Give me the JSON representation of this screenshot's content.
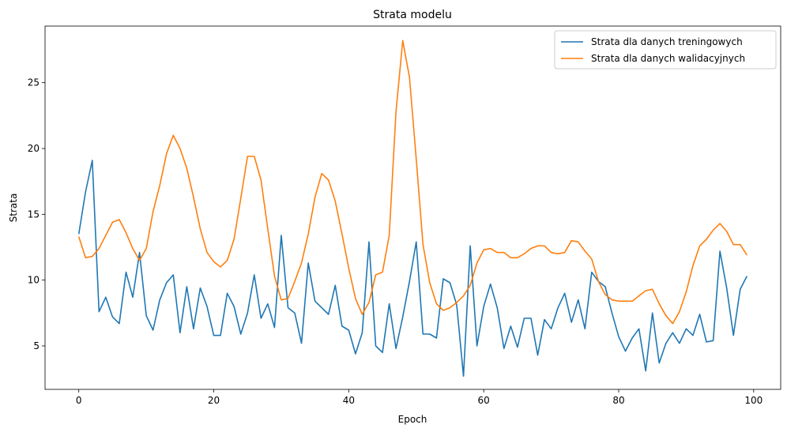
{
  "chart_data": {
    "type": "line",
    "title": "Strata modelu",
    "xlabel": "Epoch",
    "ylabel": "Strata",
    "xlim": [
      -5,
      104
    ],
    "ylim": [
      1.7,
      29.3
    ],
    "xticks": [
      0,
      20,
      40,
      60,
      80,
      100
    ],
    "yticks": [
      5,
      10,
      15,
      20,
      25
    ],
    "grid": false,
    "legend_position": "top-right",
    "series": [
      {
        "name": "Strata dla danych treningowych",
        "color": "#1f77b4",
        "x": [
          0,
          1,
          2,
          3,
          4,
          5,
          6,
          7,
          8,
          9,
          10,
          11,
          12,
          13,
          14,
          15,
          16,
          17,
          18,
          19,
          20,
          21,
          22,
          23,
          24,
          25,
          26,
          27,
          28,
          29,
          30,
          31,
          32,
          33,
          34,
          35,
          36,
          37,
          38,
          39,
          40,
          41,
          42,
          43,
          44,
          45,
          46,
          47,
          48,
          49,
          50,
          51,
          52,
          53,
          54,
          55,
          56,
          57,
          58,
          59,
          60,
          61,
          62,
          63,
          64,
          65,
          66,
          67,
          68,
          69,
          70,
          71,
          72,
          73,
          74,
          75,
          76,
          77,
          78,
          79,
          80,
          81,
          82,
          83,
          84,
          85,
          86,
          87,
          88,
          89,
          90,
          91,
          92,
          93,
          94,
          95,
          96,
          97,
          98,
          99
        ],
        "values": [
          13.5,
          16.7,
          19.1,
          7.6,
          8.7,
          7.2,
          6.7,
          10.6,
          8.7,
          12.1,
          7.3,
          6.2,
          8.5,
          9.8,
          10.4,
          6.0,
          9.5,
          6.3,
          9.4,
          8.0,
          5.8,
          5.8,
          9.0,
          8.0,
          5.9,
          7.5,
          10.4,
          7.1,
          8.2,
          6.4,
          13.4,
          7.9,
          7.5,
          5.2,
          11.3,
          8.4,
          7.9,
          7.4,
          9.6,
          6.5,
          6.2,
          4.4,
          6.0,
          12.9,
          5.0,
          4.5,
          8.2,
          4.8,
          7.2,
          9.9,
          12.9,
          5.9,
          5.9,
          5.6,
          10.1,
          9.8,
          8.1,
          2.7,
          12.6,
          5.0,
          8.0,
          9.7,
          7.9,
          4.8,
          6.5,
          4.9,
          7.1,
          7.1,
          4.3,
          7.0,
          6.3,
          7.9,
          9.0,
          6.8,
          8.5,
          6.3,
          10.6,
          9.9,
          9.5,
          7.5,
          5.7,
          4.6,
          5.6,
          6.3,
          3.1,
          7.5,
          3.7,
          5.2,
          6.0,
          5.2,
          6.3,
          5.8,
          7.4,
          5.3,
          5.4,
          12.2,
          9.4,
          5.8,
          9.3,
          10.3
        ]
      },
      {
        "name": "Strata dla danych walidacyjnych",
        "color": "#ff7f0e",
        "x": [
          0,
          1,
          2,
          3,
          4,
          5,
          6,
          7,
          8,
          9,
          10,
          11,
          12,
          13,
          14,
          15,
          16,
          17,
          18,
          19,
          20,
          21,
          22,
          23,
          24,
          25,
          26,
          27,
          28,
          29,
          30,
          31,
          32,
          33,
          34,
          35,
          36,
          37,
          38,
          39,
          40,
          41,
          42,
          43,
          44,
          45,
          46,
          47,
          48,
          49,
          50,
          51,
          52,
          53,
          54,
          55,
          56,
          57,
          58,
          59,
          60,
          61,
          62,
          63,
          64,
          65,
          66,
          67,
          68,
          69,
          70,
          71,
          72,
          73,
          74,
          75,
          76,
          77,
          78,
          79,
          80,
          81,
          82,
          83,
          84,
          85,
          86,
          87,
          88,
          89,
          90,
          91,
          92,
          93,
          94,
          95,
          96,
          97,
          98,
          99
        ],
        "values": [
          13.3,
          11.7,
          11.8,
          12.4,
          13.4,
          14.4,
          14.6,
          13.6,
          12.4,
          11.5,
          12.4,
          15.2,
          17.2,
          19.6,
          21.0,
          20.0,
          18.5,
          16.3,
          13.9,
          12.1,
          11.4,
          11.0,
          11.5,
          13.1,
          16.2,
          19.4,
          19.4,
          17.6,
          13.9,
          10.3,
          8.5,
          8.6,
          9.9,
          11.3,
          13.5,
          16.3,
          18.1,
          17.6,
          16.0,
          13.5,
          10.9,
          8.6,
          7.4,
          8.3,
          10.4,
          10.6,
          13.4,
          22.8,
          28.2,
          25.4,
          19.2,
          12.7,
          9.8,
          8.2,
          7.7,
          7.9,
          8.3,
          8.8,
          9.6,
          11.3,
          12.3,
          12.4,
          12.1,
          12.1,
          11.7,
          11.7,
          12.0,
          12.4,
          12.6,
          12.6,
          12.1,
          12.0,
          12.1,
          13.0,
          12.9,
          12.2,
          11.6,
          9.9,
          8.9,
          8.5,
          8.4,
          8.4,
          8.4,
          8.8,
          9.2,
          9.3,
          8.2,
          7.3,
          6.7,
          7.6,
          9.1,
          11.1,
          12.6,
          13.1,
          13.8,
          14.3,
          13.7,
          12.7,
          12.7,
          11.9
        ]
      }
    ]
  }
}
